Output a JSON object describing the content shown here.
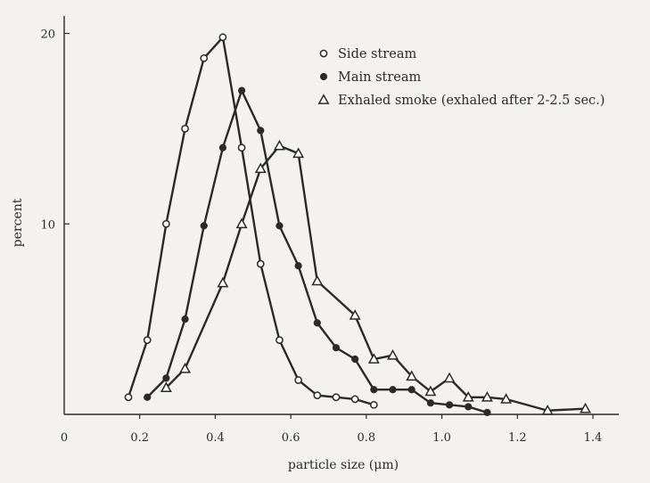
{
  "chart_data": {
    "type": "line",
    "title": "",
    "xlabel": "particle size (μm)",
    "ylabel": "percent",
    "xlim": [
      0,
      1.45
    ],
    "ylim": [
      0,
      21
    ],
    "x_ticks": [
      {
        "value": 0,
        "label": "0"
      },
      {
        "value": 0.2,
        "label": "0.2"
      },
      {
        "value": 0.4,
        "label": "0.4"
      },
      {
        "value": 0.6,
        "label": "0.6"
      },
      {
        "value": 0.8,
        "label": "0.8"
      },
      {
        "value": 1.0,
        "label": "1.0"
      },
      {
        "value": 1.2,
        "label": "1.2"
      },
      {
        "value": 1.4,
        "label": "1.4"
      }
    ],
    "y_ticks": [
      {
        "value": 10,
        "label": "10"
      },
      {
        "value": 20,
        "label": "20"
      }
    ],
    "grid": false,
    "legend_position": "top-right",
    "series": [
      {
        "name": "Side stream",
        "marker": "open-circle",
        "x": [
          0.17,
          0.22,
          0.27,
          0.32,
          0.37,
          0.42,
          0.47,
          0.52,
          0.57,
          0.62,
          0.67,
          0.72,
          0.77,
          0.82
        ],
        "y": [
          0.9,
          3.9,
          10.0,
          15.0,
          18.7,
          19.8,
          14.0,
          7.9,
          3.9,
          1.8,
          1.0,
          0.9,
          0.8,
          0.5
        ]
      },
      {
        "name": "Main stream",
        "marker": "filled-circle",
        "x": [
          0.22,
          0.27,
          0.32,
          0.37,
          0.42,
          0.47,
          0.52,
          0.57,
          0.62,
          0.67,
          0.72,
          0.77,
          0.82,
          0.87,
          0.92,
          0.97,
          1.02,
          1.07,
          1.12
        ],
        "y": [
          0.9,
          1.9,
          5.0,
          9.9,
          14.0,
          17.0,
          14.9,
          9.9,
          7.8,
          4.8,
          3.5,
          2.9,
          1.3,
          1.3,
          1.3,
          0.6,
          0.5,
          0.4,
          0.1
        ]
      },
      {
        "name": "Exhaled smoke (exhaled after 2-2.5 sec.)",
        "marker": "open-triangle",
        "x": [
          0.27,
          0.32,
          0.42,
          0.47,
          0.52,
          0.57,
          0.62,
          0.67,
          0.77,
          0.82,
          0.87,
          0.92,
          0.97,
          1.02,
          1.07,
          1.12,
          1.17,
          1.28,
          1.38
        ],
        "y": [
          1.4,
          2.4,
          6.9,
          10.0,
          12.9,
          14.1,
          13.7,
          7.0,
          5.2,
          2.9,
          3.1,
          2.0,
          1.2,
          1.9,
          0.9,
          0.9,
          0.8,
          0.2,
          0.3
        ]
      }
    ]
  }
}
